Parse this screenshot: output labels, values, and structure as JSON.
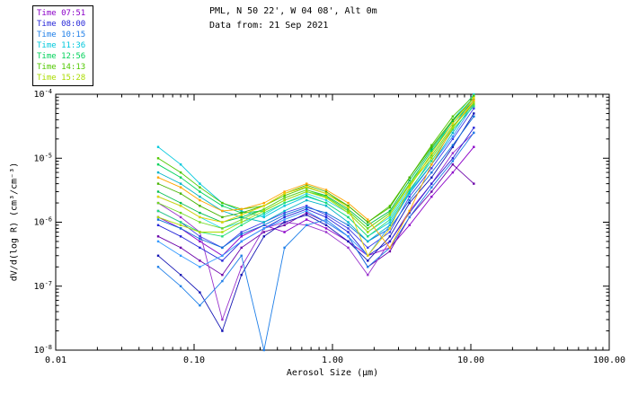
{
  "header": {
    "title": "PML, N 50 22', W 04 08', Alt 0m",
    "subtitle": "Data from: 21 Sep 2021"
  },
  "legend": {
    "items": [
      {
        "label": "Time 07:51",
        "color": "#8b00c8"
      },
      {
        "label": "Time 08:00",
        "color": "#2626d8"
      },
      {
        "label": "Time 10:15",
        "color": "#1f7fe8"
      },
      {
        "label": "Time 11:36",
        "color": "#00c8dc"
      },
      {
        "label": "Time 12:56",
        "color": "#00d25a"
      },
      {
        "label": "Time 14:13",
        "color": "#50c800"
      },
      {
        "label": "Time 15:28",
        "color": "#aadc00"
      }
    ]
  },
  "chart_data": {
    "type": "line",
    "title": "PML, N 50 22', W 04 08', Alt 0m",
    "subtitle": "Data from: 21 Sep 2021",
    "xlabel": "Aerosol Size (μm)",
    "ylabel": "dV/d(log R) (cm³/cm⁻³)",
    "x_scale": "log",
    "y_scale": "log",
    "xlim": [
      0.01,
      100
    ],
    "ylim": [
      1e-08,
      0.0001
    ],
    "grid": false,
    "legend_position": "top-left",
    "x_ticks": [
      {
        "value": 0.01,
        "label": "0.01"
      },
      {
        "value": 0.1,
        "label": "0.10"
      },
      {
        "value": 1,
        "label": "1.00"
      },
      {
        "value": 10,
        "label": "10.00"
      },
      {
        "value": 100,
        "label": "100.00"
      }
    ],
    "y_ticks": [
      {
        "value": 1e-08,
        "base": "10",
        "exp": "-8"
      },
      {
        "value": 1e-07,
        "base": "10",
        "exp": "-7"
      },
      {
        "value": 1e-06,
        "base": "10",
        "exp": "-6"
      },
      {
        "value": 1e-05,
        "base": "10",
        "exp": "-5"
      },
      {
        "value": 0.0001,
        "base": "10",
        "exp": "-4"
      }
    ],
    "x": [
      0.055,
      0.08,
      0.11,
      0.16,
      0.22,
      0.32,
      0.45,
      0.65,
      0.9,
      1.3,
      1.8,
      2.6,
      3.6,
      5.2,
      7.4,
      10.5
    ],
    "series": [
      {
        "time": "07:51",
        "color": "#8b00c8",
        "values": [
          1.2e-06,
          8e-07,
          5e-07,
          3e-07,
          6e-07,
          9e-07,
          7e-07,
          1.1e-06,
          8e-07,
          5e-07,
          3e-07,
          4e-07,
          9e-07,
          2.5e-06,
          6e-06,
          1.5e-05
        ]
      },
      {
        "time": "07:51",
        "color": "#6a00a8",
        "values": [
          6e-07,
          4e-07,
          2.5e-07,
          1.5e-07,
          4e-07,
          7e-07,
          9e-07,
          1.4e-06,
          1e-06,
          6e-07,
          2e-07,
          3.5e-07,
          1.2e-06,
          3e-06,
          8e-06,
          4e-06
        ]
      },
      {
        "time": "07:51",
        "color": "#9932cc",
        "values": [
          2e-06,
          1.2e-06,
          7e-07,
          3e-08,
          2e-07,
          8e-07,
          1e-06,
          9e-07,
          7e-07,
          4e-07,
          1.5e-07,
          5e-07,
          1.5e-06,
          4e-06,
          1.2e-05,
          2.5e-05
        ]
      },
      {
        "time": "08:00",
        "color": "#2626d8",
        "values": [
          9e-07,
          6e-07,
          4e-07,
          2.5e-07,
          5e-07,
          8e-07,
          1.2e-06,
          1.6e-06,
          1.2e-06,
          7e-07,
          3e-07,
          5e-07,
          1.4e-06,
          4e-06,
          1e-05,
          3e-05
        ]
      },
      {
        "time": "08:00",
        "color": "#1414b4",
        "values": [
          3e-07,
          1.5e-07,
          8e-08,
          2e-08,
          1.5e-07,
          6e-07,
          1e-06,
          1.3e-06,
          9e-07,
          5e-07,
          2.5e-07,
          6e-07,
          2e-06,
          5e-06,
          1.5e-05,
          5e-05
        ]
      },
      {
        "time": "08:00",
        "color": "#4040e8",
        "values": [
          1.5e-06,
          1e-06,
          6e-07,
          4e-07,
          7e-07,
          1e-06,
          1.4e-06,
          1.8e-06,
          1.3e-06,
          8e-07,
          4e-07,
          7e-07,
          2.5e-06,
          7e-06,
          2e-05,
          6e-05
        ]
      },
      {
        "time": "10:15",
        "color": "#1f7fe8",
        "values": [
          2e-07,
          1e-07,
          5e-08,
          1.2e-07,
          3e-07,
          1e-08,
          4e-07,
          9e-07,
          1.1e-06,
          6e-07,
          2e-07,
          4e-07,
          1.2e-06,
          3.5e-06,
          9e-06,
          2.5e-05
        ]
      },
      {
        "time": "10:15",
        "color": "#0f6fd8",
        "values": [
          1.1e-06,
          8e-07,
          5.5e-07,
          4e-07,
          6.5e-07,
          9e-07,
          1.3e-06,
          1.7e-06,
          1.4e-06,
          9e-07,
          5e-07,
          8e-07,
          2.2e-06,
          6e-06,
          1.6e-05,
          4.5e-05
        ]
      },
      {
        "time": "10:15",
        "color": "#3399ff",
        "values": [
          5e-07,
          3e-07,
          2e-07,
          3e-07,
          5e-07,
          8e-07,
          1.1e-06,
          1.5e-06,
          1e-06,
          6e-07,
          3e-07,
          9e-07,
          3e-06,
          8e-06,
          2.2e-05,
          7e-05
        ]
      },
      {
        "time": "11:36",
        "color": "#00c8dc",
        "values": [
          1.5e-05,
          8e-06,
          4e-06,
          2e-06,
          1.5e-06,
          1.2e-06,
          1.8e-06,
          2.5e-06,
          2e-06,
          1.2e-06,
          6e-07,
          1e-06,
          3e-06,
          1e-05,
          3e-05,
          9e-05
        ]
      },
      {
        "time": "11:36",
        "color": "#00b4c8",
        "values": [
          6e-06,
          4e-06,
          2.5e-06,
          1.5e-06,
          1.2e-06,
          1e-06,
          1.5e-06,
          2.2e-06,
          1.8e-06,
          1e-06,
          5e-07,
          9e-07,
          2.8e-06,
          8e-06,
          2.5e-05,
          7.5e-05
        ]
      },
      {
        "time": "11:36",
        "color": "#22d8e8",
        "values": [
          2.5e-06,
          1.8e-06,
          1.2e-06,
          8e-07,
          1e-06,
          1.3e-06,
          2e-06,
          2.8e-06,
          2.2e-06,
          1.4e-06,
          7e-07,
          1.2e-06,
          3.5e-06,
          1.2e-05,
          4e-05,
          0.0001
        ]
      },
      {
        "time": "12:56",
        "color": "#00d25a",
        "values": [
          8e-06,
          5e-06,
          3e-06,
          1.8e-06,
          1.4e-06,
          1.5e-06,
          2.2e-06,
          3e-06,
          2.5e-06,
          1.5e-06,
          8e-07,
          1.4e-06,
          4e-06,
          1.3e-05,
          3.5e-05,
          8e-05
        ]
      },
      {
        "time": "12:56",
        "color": "#00be50",
        "values": [
          3e-06,
          2e-06,
          1.4e-06,
          1e-06,
          1.2e-06,
          1.6e-06,
          2.4e-06,
          3.2e-06,
          2.6e-06,
          1.6e-06,
          9e-07,
          1.5e-06,
          4.5e-06,
          1.4e-05,
          3.8e-05,
          9e-05
        ]
      },
      {
        "time": "12:56",
        "color": "#22dc78",
        "values": [
          1.5e-06,
          1e-06,
          7e-07,
          6e-07,
          9e-07,
          1.4e-06,
          2e-06,
          2.6e-06,
          2e-06,
          1.2e-06,
          6e-07,
          1.1e-06,
          3.2e-06,
          9e-06,
          2.8e-05,
          6.5e-05
        ]
      },
      {
        "time": "14:13",
        "color": "#50c800",
        "values": [
          1e-05,
          6e-06,
          3.5e-06,
          2e-06,
          1.6e-06,
          1.8e-06,
          2.6e-06,
          3.5e-06,
          2.8e-06,
          1.8e-06,
          1e-06,
          1.8e-06,
          5e-06,
          1.6e-05,
          4.5e-05,
          9.5e-05
        ]
      },
      {
        "time": "14:13",
        "color": "#46b400",
        "values": [
          4e-06,
          2.8e-06,
          1.8e-06,
          1.2e-06,
          1.4e-06,
          1.8e-06,
          2.8e-06,
          3.8e-06,
          3e-06,
          1.8e-06,
          1e-06,
          1.7e-06,
          5e-06,
          1.5e-05,
          4e-05,
          8.5e-05
        ]
      },
      {
        "time": "14:13",
        "color": "#6cd81e",
        "values": [
          2e-06,
          1.4e-06,
          1e-06,
          8e-07,
          1.1e-06,
          1.6e-06,
          2.4e-06,
          3.2e-06,
          2.5e-06,
          1.5e-06,
          8e-07,
          1.4e-06,
          4e-06,
          1.1e-05,
          3.2e-05,
          7e-05
        ]
      },
      {
        "time": "15:28",
        "color": "#ffa500",
        "values": [
          5e-06,
          3.5e-06,
          2.2e-06,
          1.5e-06,
          1.6e-06,
          2e-06,
          3e-06,
          4e-06,
          3.2e-06,
          2e-06,
          1.1e-06,
          4e-07,
          1.5e-06,
          8e-06,
          3e-05,
          8e-05
        ]
      },
      {
        "time": "15:28",
        "color": "#e6d200",
        "values": [
          2.5e-06,
          1.8e-06,
          1.2e-06,
          1e-06,
          1.3e-06,
          1.8e-06,
          2.8e-06,
          3.6e-06,
          2.8e-06,
          1.7e-06,
          3e-07,
          8e-07,
          3.5e-06,
          1.2e-05,
          3.5e-05,
          8.8e-05
        ]
      },
      {
        "time": "15:28",
        "color": "#aadc00",
        "values": [
          1.2e-06,
          9e-07,
          7e-07,
          7e-07,
          1e-06,
          1.5e-06,
          2.2e-06,
          3e-06,
          2.4e-06,
          1.4e-06,
          7e-07,
          1.3e-06,
          3.8e-06,
          1e-05,
          3e-05,
          7.5e-05
        ]
      }
    ]
  }
}
